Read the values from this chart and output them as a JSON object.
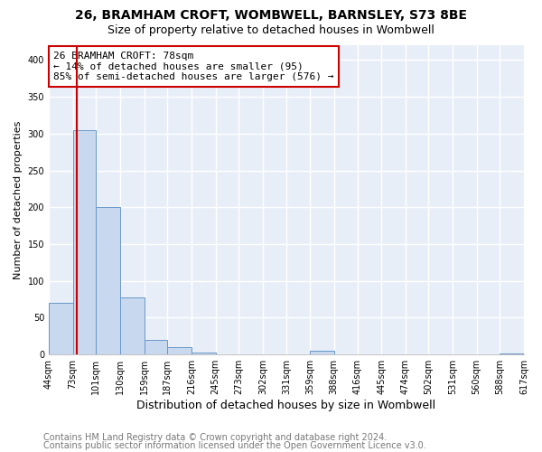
{
  "title1": "26, BRAMHAM CROFT, WOMBWELL, BARNSLEY, S73 8BE",
  "title2": "Size of property relative to detached houses in Wombwell",
  "xlabel": "Distribution of detached houses by size in Wombwell",
  "ylabel": "Number of detached properties",
  "bin_edges": [
    44,
    73,
    101,
    130,
    159,
    187,
    216,
    245,
    273,
    302,
    331,
    359,
    388,
    416,
    445,
    474,
    502,
    531,
    560,
    588,
    617
  ],
  "bar_heights": [
    70,
    305,
    200,
    78,
    20,
    10,
    3,
    0,
    0,
    0,
    0,
    5,
    0,
    0,
    0,
    0,
    0,
    0,
    0,
    2
  ],
  "bar_color": "#c8d8ee",
  "bar_edge_color": "#6898c8",
  "property_size": 78,
  "marker_line_color": "#cc0000",
  "annotation_box_color": "#ffffff",
  "annotation_box_edge": "#cc0000",
  "annotation_text": "26 BRAMHAM CROFT: 78sqm\n← 14% of detached houses are smaller (95)\n85% of semi-detached houses are larger (576) →",
  "ylim": [
    0,
    420
  ],
  "yticks": [
    0,
    50,
    100,
    150,
    200,
    250,
    300,
    350,
    400
  ],
  "footer1": "Contains HM Land Registry data © Crown copyright and database right 2024.",
  "footer2": "Contains public sector information licensed under the Open Government Licence v3.0.",
  "plot_bg_color": "#e8eef8",
  "fig_bg_color": "#ffffff",
  "grid_color": "#ffffff",
  "title1_fontsize": 10,
  "title2_fontsize": 9,
  "xlabel_fontsize": 9,
  "ylabel_fontsize": 8,
  "tick_fontsize": 7,
  "annot_fontsize": 8,
  "footer_fontsize": 7
}
